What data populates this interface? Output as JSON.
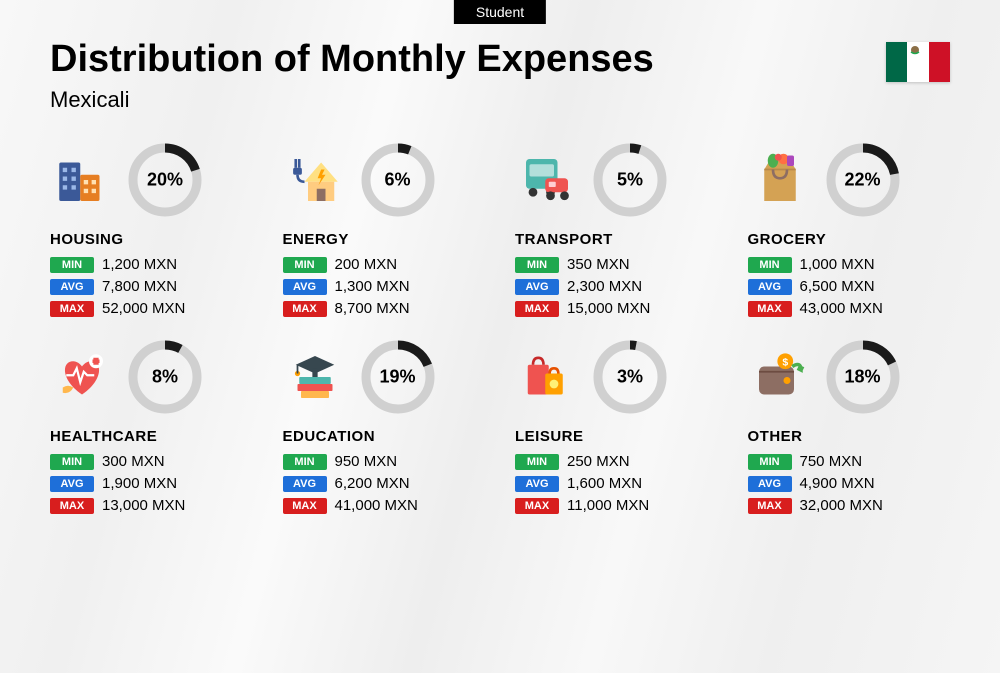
{
  "badge": "Student",
  "title": "Distribution of Monthly Expenses",
  "city": "Mexicali",
  "flag_colors": [
    "#006847",
    "#ffffff",
    "#ce1126"
  ],
  "currency": "MXN",
  "ring": {
    "bg_color": "#d0d0d0",
    "fg_color": "#1a1a1a",
    "stroke_width": 9,
    "radius": 32
  },
  "stat_labels": {
    "min": "MIN",
    "avg": "AVG",
    "max": "MAX"
  },
  "stat_colors": {
    "min": "#1fa84f",
    "avg": "#1e6fd9",
    "max": "#d81e1e"
  },
  "categories": [
    {
      "name": "HOUSING",
      "pct": 20,
      "min": "1,200",
      "avg": "7,800",
      "max": "52,000",
      "icon": "housing"
    },
    {
      "name": "ENERGY",
      "pct": 6,
      "min": "200",
      "avg": "1,300",
      "max": "8,700",
      "icon": "energy"
    },
    {
      "name": "TRANSPORT",
      "pct": 5,
      "min": "350",
      "avg": "2,300",
      "max": "15,000",
      "icon": "transport"
    },
    {
      "name": "GROCERY",
      "pct": 22,
      "min": "1,000",
      "avg": "6,500",
      "max": "43,000",
      "icon": "grocery"
    },
    {
      "name": "HEALTHCARE",
      "pct": 8,
      "min": "300",
      "avg": "1,900",
      "max": "13,000",
      "icon": "healthcare"
    },
    {
      "name": "EDUCATION",
      "pct": 19,
      "min": "950",
      "avg": "6,200",
      "max": "41,000",
      "icon": "education"
    },
    {
      "name": "LEISURE",
      "pct": 3,
      "min": "250",
      "avg": "1,600",
      "max": "11,000",
      "icon": "leisure"
    },
    {
      "name": "OTHER",
      "pct": 18,
      "min": "750",
      "avg": "4,900",
      "max": "32,000",
      "icon": "other"
    }
  ]
}
